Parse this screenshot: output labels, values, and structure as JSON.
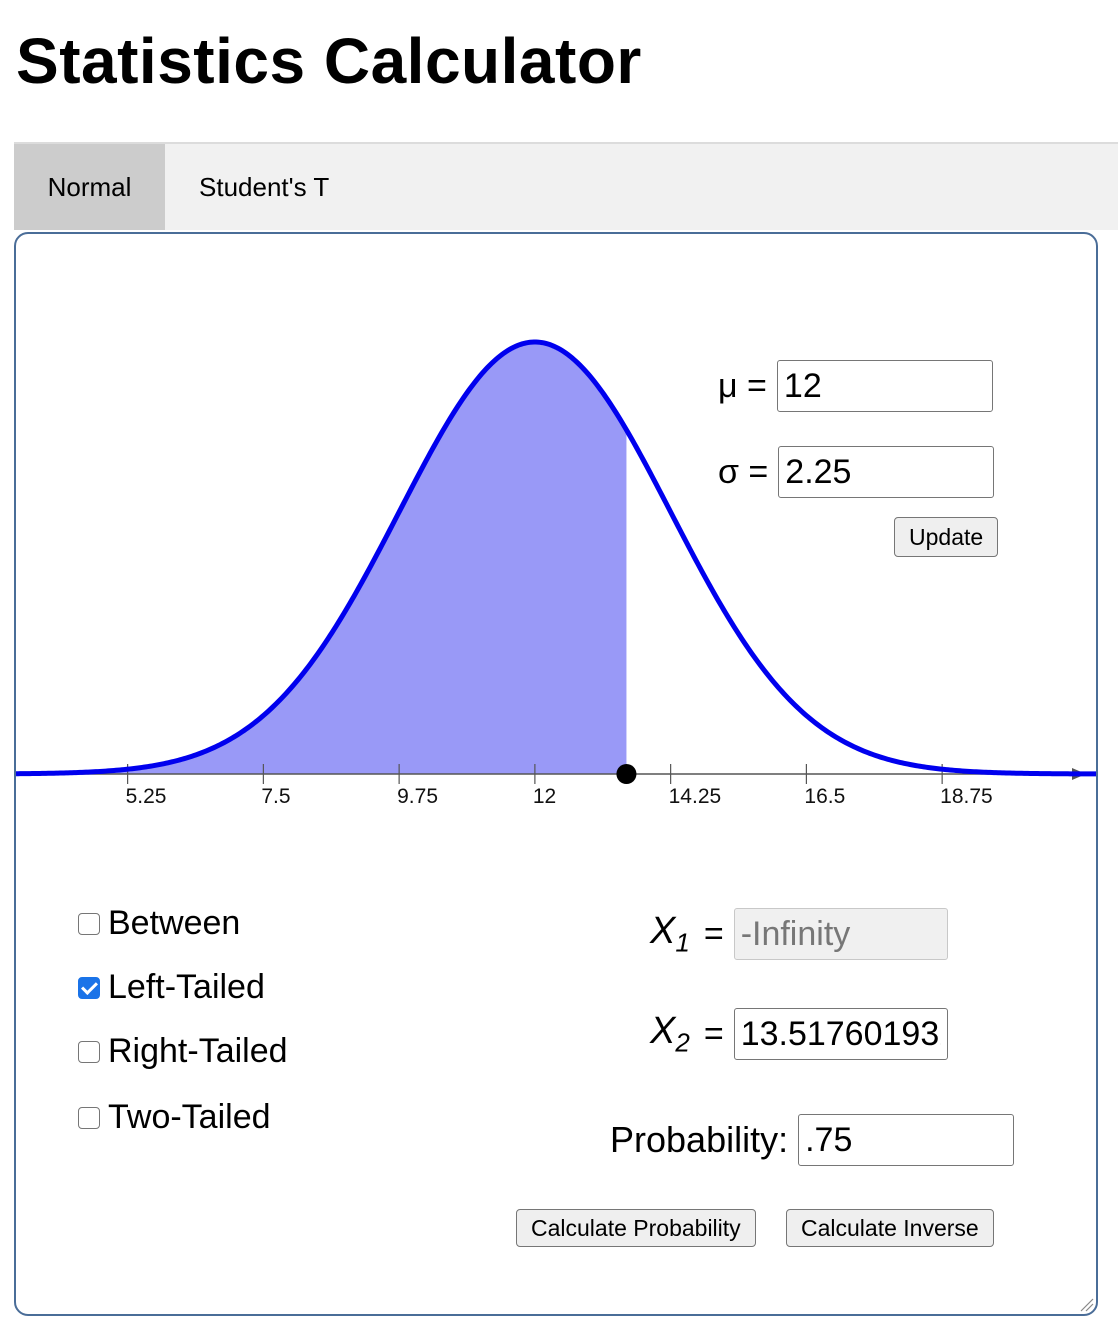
{
  "page_title": "Statistics Calculator",
  "tabs": [
    {
      "label": "Normal",
      "active": true
    },
    {
      "label": "Student's T",
      "active": false
    }
  ],
  "params": {
    "mu_label": "μ =",
    "mu_value": "12",
    "sigma_label": "σ =",
    "sigma_value": "2.25",
    "update_label": "Update"
  },
  "chart_data": {
    "type": "area",
    "distribution": "normal",
    "mean": 12,
    "sd": 2.25,
    "xlim": [
      3.4,
      21.3
    ],
    "tick_labels": [
      "5.25",
      "7.5",
      "9.75",
      "12",
      "14.25",
      "16.5",
      "18.75"
    ],
    "ticks": [
      5.25,
      7.5,
      9.75,
      12,
      14.25,
      16.5,
      18.75
    ],
    "shaded_from": "-Infinity",
    "shaded_to": 13.5176,
    "marker_x": 13.5176,
    "curve_color": "#0000ee",
    "fill_color": "#9999f7"
  },
  "tail_options": [
    {
      "label": "Between",
      "checked": false
    },
    {
      "label": "Left-Tailed",
      "checked": true
    },
    {
      "label": "Right-Tailed",
      "checked": false
    },
    {
      "label": "Two-Tailed",
      "checked": false
    }
  ],
  "bounds": {
    "x_symbol": "X",
    "x1_sub": "1",
    "x2_sub": "2",
    "eq": "=",
    "x1_value": "-Infinity",
    "x2_value": "13.5176019321"
  },
  "probability": {
    "label": "Probability:",
    "value": ".75"
  },
  "buttons": {
    "calc_prob": "Calculate Probability",
    "calc_inverse": "Calculate Inverse"
  }
}
